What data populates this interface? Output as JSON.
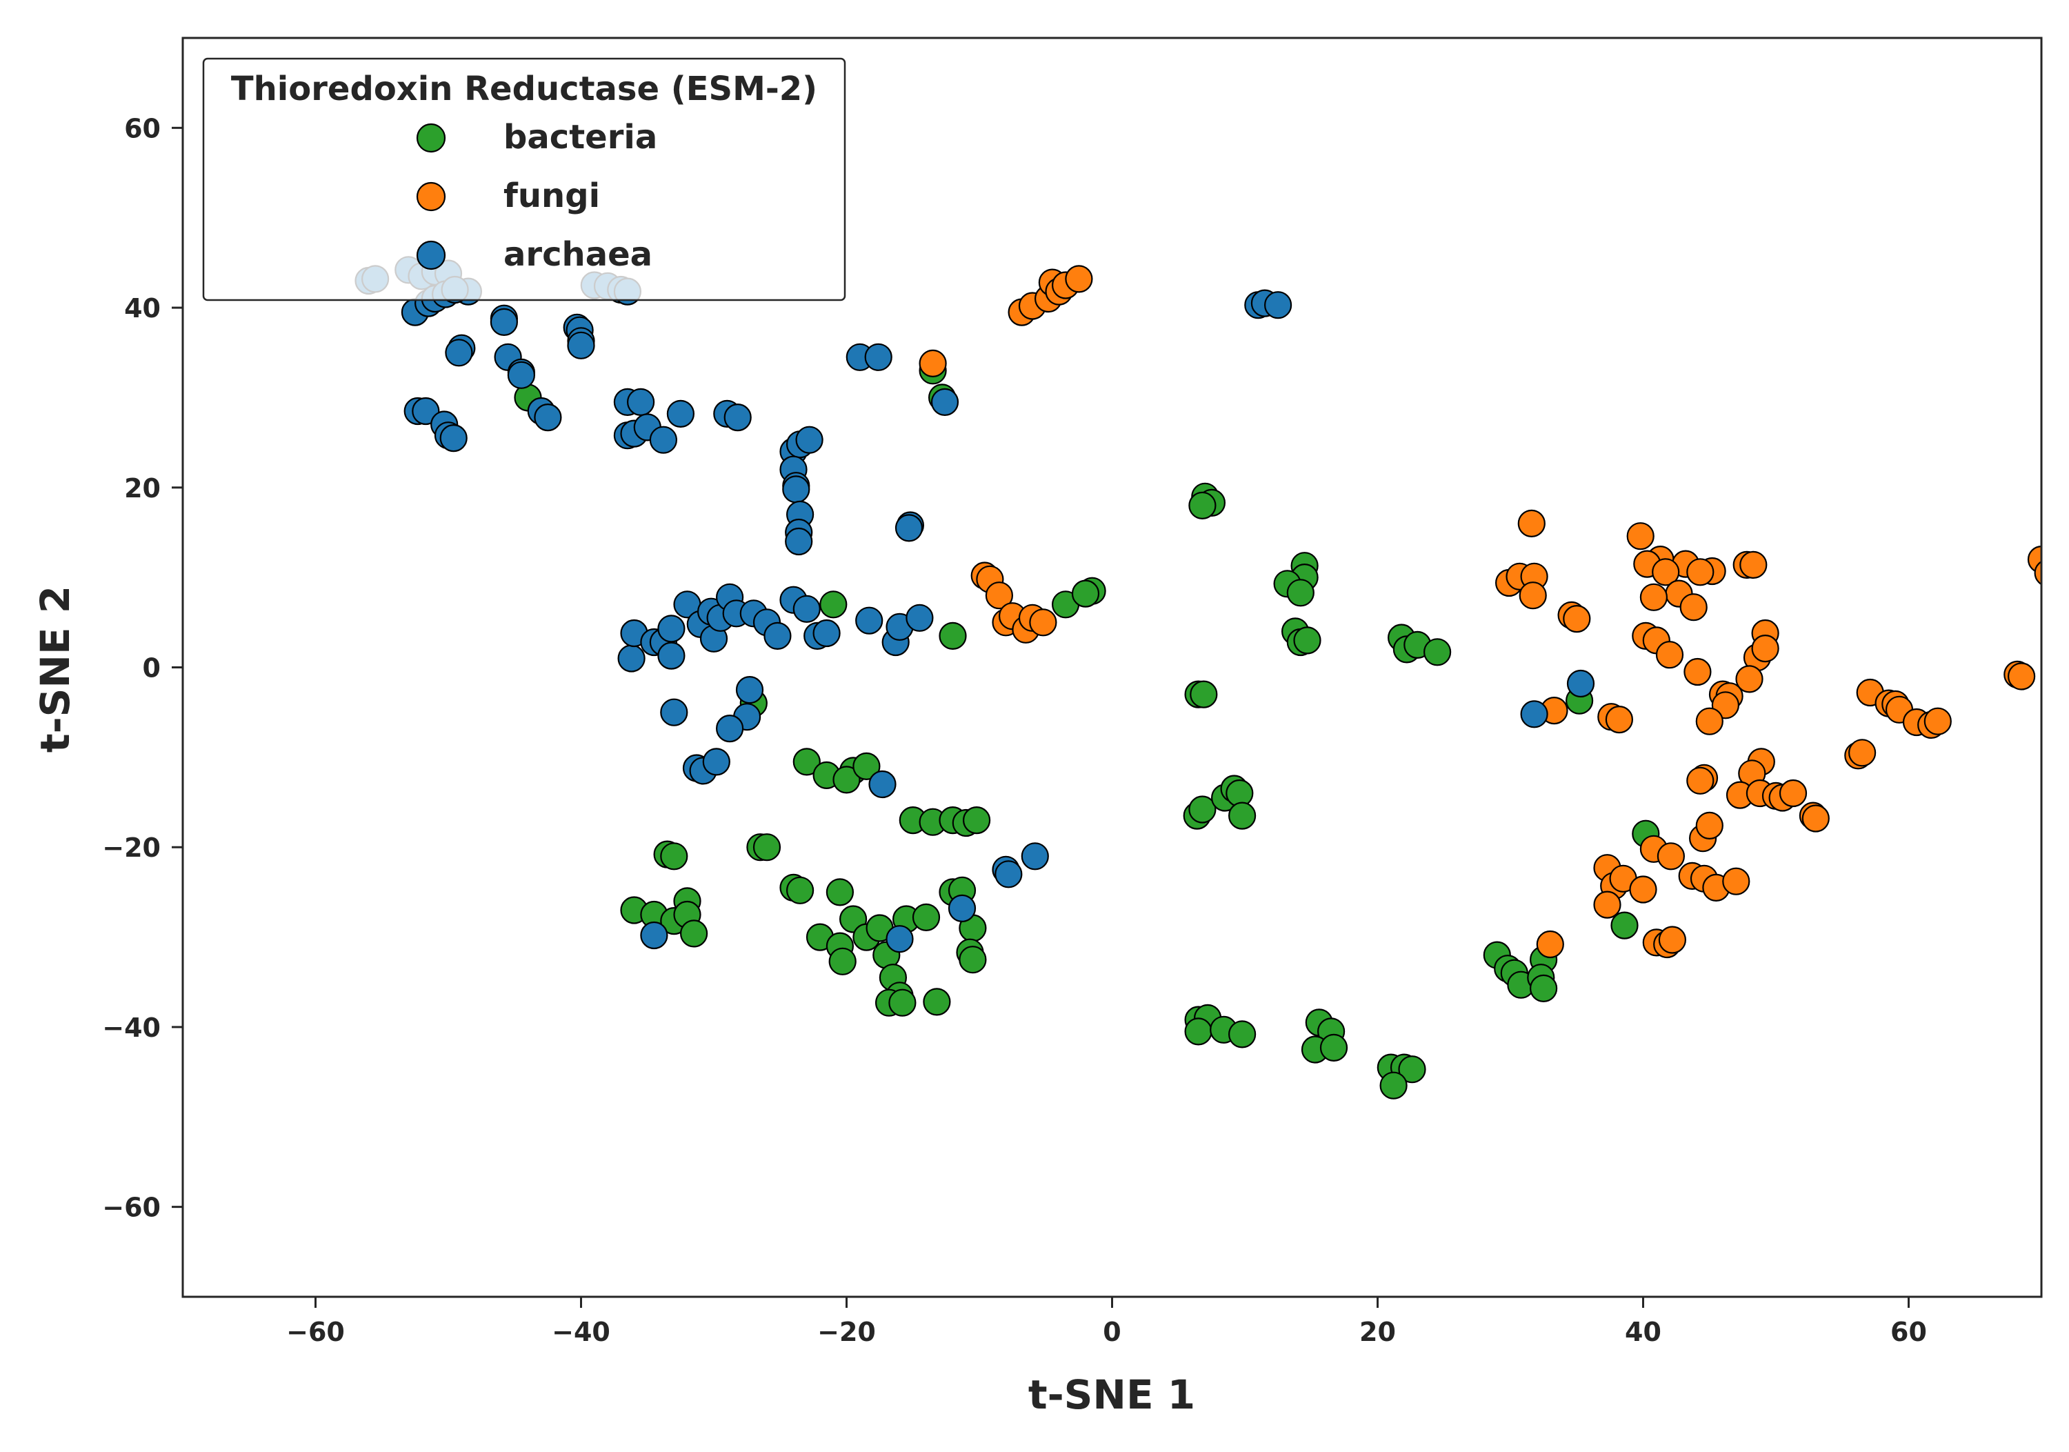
{
  "chart_data": {
    "type": "scatter",
    "xlabel": "t-SNE 1",
    "ylabel": "t-SNE 2",
    "xlim": [
      -70,
      70
    ],
    "ylim": [
      -70,
      70
    ],
    "xticks": [
      -60,
      -40,
      -20,
      0,
      20,
      40,
      60
    ],
    "yticks": [
      -60,
      -40,
      -20,
      0,
      20,
      40,
      60
    ],
    "xtick_labels": [
      "−60",
      "−40",
      "−20",
      "0",
      "20",
      "40",
      "60"
    ],
    "ytick_labels": [
      "−60",
      "−40",
      "−20",
      "0",
      "20",
      "40",
      "60"
    ],
    "grid": false,
    "legend": {
      "title": "Thioredoxin Reductase (ESM-2)",
      "location": "upper left"
    },
    "series": [
      {
        "name": "bacteria",
        "color": "#2ca02c",
        "points": [
          [
            -44,
            30
          ],
          [
            -13.5,
            33
          ],
          [
            -12.8,
            30
          ],
          [
            7,
            19
          ],
          [
            7.5,
            18.3
          ],
          [
            6.8,
            18
          ],
          [
            -21,
            7
          ],
          [
            -12,
            3.5
          ],
          [
            -3.5,
            7
          ],
          [
            -1.5,
            8.5
          ],
          [
            -2,
            8.2
          ],
          [
            14.5,
            11.3
          ],
          [
            14.5,
            10
          ],
          [
            13.2,
            9.3
          ],
          [
            14.2,
            8.3
          ],
          [
            13.8,
            4
          ],
          [
            14.2,
            2.8
          ],
          [
            14.7,
            3
          ],
          [
            21.8,
            3.3
          ],
          [
            22.2,
            2
          ],
          [
            23,
            2.5
          ],
          [
            24.5,
            1.7
          ],
          [
            6.5,
            -3
          ],
          [
            6.9,
            -3
          ],
          [
            35.2,
            -3.7
          ],
          [
            -27,
            -4
          ],
          [
            -23,
            -10.5
          ],
          [
            -21.5,
            -12
          ],
          [
            -19.5,
            -11.5
          ],
          [
            -20,
            -12.5
          ],
          [
            -18.5,
            -11
          ],
          [
            -15,
            -17
          ],
          [
            -13.5,
            -17.2
          ],
          [
            -12,
            -17
          ],
          [
            -11,
            -17.3
          ],
          [
            -10.2,
            -17
          ],
          [
            6.4,
            -16.5
          ],
          [
            6.8,
            -15.8
          ],
          [
            8.5,
            -14.5
          ],
          [
            9.2,
            -13.5
          ],
          [
            9.6,
            -14
          ],
          [
            9.8,
            -16.5
          ],
          [
            -26.5,
            -20
          ],
          [
            -26,
            -20
          ],
          [
            -33.5,
            -20.8
          ],
          [
            -33,
            -21
          ],
          [
            -24,
            -24.5
          ],
          [
            -23.5,
            -24.8
          ],
          [
            -20.5,
            -25
          ],
          [
            -12,
            -25
          ],
          [
            -11.3,
            -24.8
          ],
          [
            -36,
            -27
          ],
          [
            -34.5,
            -27.5
          ],
          [
            -32,
            -26
          ],
          [
            -33,
            -28.2
          ],
          [
            -32,
            -27.5
          ],
          [
            -31.5,
            -29.6
          ],
          [
            -22,
            -30
          ],
          [
            -20.5,
            -31
          ],
          [
            -19.5,
            -28
          ],
          [
            -18.5,
            -30
          ],
          [
            -17.5,
            -29
          ],
          [
            -17,
            -32
          ],
          [
            -15.5,
            -28
          ],
          [
            -14,
            -27.8
          ],
          [
            -10.5,
            -29
          ],
          [
            -10.7,
            -31.7
          ],
          [
            -10.5,
            -32.5
          ],
          [
            -20.3,
            -32.7
          ],
          [
            -16.5,
            -34.5
          ],
          [
            -16,
            -36.5
          ],
          [
            -16.8,
            -37.3
          ],
          [
            -15.8,
            -37.3
          ],
          [
            -13.2,
            -37.2
          ],
          [
            38.6,
            -28.7
          ],
          [
            40.2,
            -18.5
          ],
          [
            29,
            -32
          ],
          [
            29.8,
            -33.5
          ],
          [
            30.3,
            -34
          ],
          [
            30.8,
            -35.3
          ],
          [
            32.5,
            -32.5
          ],
          [
            32.3,
            -34.5
          ],
          [
            32.5,
            -35.7
          ],
          [
            6.5,
            -39.2
          ],
          [
            7.2,
            -39
          ],
          [
            6.5,
            -40.5
          ],
          [
            8.4,
            -40.3
          ],
          [
            9.8,
            -40.8
          ],
          [
            15.6,
            -39.5
          ],
          [
            16.5,
            -40.5
          ],
          [
            15.3,
            -42.5
          ],
          [
            16.7,
            -42.3
          ],
          [
            21,
            -44.5
          ],
          [
            22,
            -44.5
          ],
          [
            22.6,
            -44.7
          ],
          [
            21.2,
            -46.5
          ]
        ]
      },
      {
        "name": "fungi",
        "color": "#ff7f0e",
        "points": [
          [
            -6.8,
            39.5
          ],
          [
            -6,
            40.2
          ],
          [
            -4.8,
            41
          ],
          [
            -4.5,
            42.8
          ],
          [
            -4,
            41.8
          ],
          [
            -3.5,
            42.5
          ],
          [
            -2.5,
            43.2
          ],
          [
            -13.5,
            33.8
          ],
          [
            -9.6,
            10.2
          ],
          [
            -9.2,
            9.8
          ],
          [
            -8.5,
            8
          ],
          [
            -8,
            5
          ],
          [
            -7.5,
            5.7
          ],
          [
            -6.5,
            4.2
          ],
          [
            -6,
            5.5
          ],
          [
            -5.2,
            5
          ],
          [
            31.6,
            16
          ],
          [
            39.8,
            14.6
          ],
          [
            41.3,
            12
          ],
          [
            40.3,
            11.5
          ],
          [
            43.2,
            11.5
          ],
          [
            45.2,
            10.7
          ],
          [
            41.7,
            10.6
          ],
          [
            44.3,
            10.6
          ],
          [
            47.8,
            11.4
          ],
          [
            48.3,
            11.4
          ],
          [
            29.9,
            9.4
          ],
          [
            30.7,
            10.1
          ],
          [
            31.8,
            10.1
          ],
          [
            31.7,
            8
          ],
          [
            42.7,
            8.2
          ],
          [
            40.8,
            7.8
          ],
          [
            43.8,
            6.7
          ],
          [
            34.6,
            5.8
          ],
          [
            35,
            5.4
          ],
          [
            40.2,
            3.5
          ],
          [
            41,
            3
          ],
          [
            42,
            1.4
          ],
          [
            49.2,
            3.8
          ],
          [
            48.6,
            1.1
          ],
          [
            49.2,
            2.1
          ],
          [
            44.1,
            -0.5
          ],
          [
            48,
            -1.3
          ],
          [
            68.2,
            -0.8
          ],
          [
            68.5,
            -1
          ],
          [
            33.3,
            -4.8
          ],
          [
            37.6,
            -5.5
          ],
          [
            38.2,
            -5.8
          ],
          [
            46,
            -3
          ],
          [
            46.5,
            -3.2
          ],
          [
            46.2,
            -4.2
          ],
          [
            45,
            -6
          ],
          [
            57.1,
            -2.8
          ],
          [
            58.5,
            -4
          ],
          [
            59,
            -4.1
          ],
          [
            59.3,
            -4.7
          ],
          [
            60.6,
            -6.1
          ],
          [
            61.7,
            -6.4
          ],
          [
            62.2,
            -6
          ],
          [
            56.2,
            -9.8
          ],
          [
            56.5,
            -9.5
          ],
          [
            48.9,
            -10.5
          ],
          [
            44.6,
            -12.3
          ],
          [
            44.3,
            -12.6
          ],
          [
            48.2,
            -11.8
          ],
          [
            47.3,
            -14.2
          ],
          [
            48.8,
            -14
          ],
          [
            50,
            -14.3
          ],
          [
            50.5,
            -14.5
          ],
          [
            51.3,
            -14
          ],
          [
            52.8,
            -16.5
          ],
          [
            53,
            -16.8
          ],
          [
            44.5,
            -19
          ],
          [
            45,
            -17.6
          ],
          [
            40.8,
            -20.2
          ],
          [
            42.1,
            -21
          ],
          [
            37.3,
            -22.3
          ],
          [
            37.8,
            -24.3
          ],
          [
            38.5,
            -23.5
          ],
          [
            40,
            -24.7
          ],
          [
            43.7,
            -23.2
          ],
          [
            44.6,
            -23.5
          ],
          [
            45.5,
            -24.5
          ],
          [
            47,
            -23.8
          ],
          [
            37.3,
            -26.4
          ],
          [
            33,
            -30.8
          ],
          [
            41,
            -30.6
          ],
          [
            41.8,
            -30.8
          ],
          [
            42.2,
            -30.3
          ],
          [
            70,
            12
          ],
          [
            70.5,
            10.5
          ]
        ]
      },
      {
        "name": "archaea",
        "color": "#1f77b4",
        "points": [
          [
            -56,
            43
          ],
          [
            -55.5,
            43.2
          ],
          [
            -53,
            44.2
          ],
          [
            -52,
            43.5
          ],
          [
            -51,
            44
          ],
          [
            -50,
            43.8
          ],
          [
            -48.5,
            41.8
          ],
          [
            -39,
            42.5
          ],
          [
            -38,
            42.4
          ],
          [
            -37,
            42
          ],
          [
            -36.5,
            41.8
          ],
          [
            -52.5,
            39.5
          ],
          [
            -51.5,
            40.5
          ],
          [
            -51,
            41
          ],
          [
            -50.2,
            41.5
          ],
          [
            -49.5,
            42
          ],
          [
            -45.8,
            38.8
          ],
          [
            -45.8,
            38.4
          ],
          [
            -40.3,
            37.8
          ],
          [
            -40.1,
            37.5
          ],
          [
            -40,
            36.3
          ],
          [
            -40,
            35.8
          ],
          [
            -49,
            35.5
          ],
          [
            -49.2,
            35
          ],
          [
            -45.5,
            34.5
          ],
          [
            -44.5,
            32.8
          ],
          [
            -44.5,
            32.5
          ],
          [
            -43,
            28.5
          ],
          [
            -42.5,
            27.8
          ],
          [
            -52.3,
            28.5
          ],
          [
            -51.7,
            28.5
          ],
          [
            -50.3,
            27
          ],
          [
            -50,
            25.8
          ],
          [
            -49.6,
            25.5
          ],
          [
            -36.5,
            29.5
          ],
          [
            -35.5,
            29.5
          ],
          [
            -36.5,
            25.8
          ],
          [
            -36,
            26
          ],
          [
            -35,
            26.7
          ],
          [
            -33.8,
            25.3
          ],
          [
            -32.5,
            28.2
          ],
          [
            -29,
            28.2
          ],
          [
            -28.2,
            27.8
          ],
          [
            -12.6,
            29.5
          ],
          [
            -19,
            34.5
          ],
          [
            -17.6,
            34.5
          ],
          [
            -24,
            24
          ],
          [
            -23.5,
            24.8
          ],
          [
            -22.8,
            25.3
          ],
          [
            -24,
            22
          ],
          [
            -23.8,
            20.2
          ],
          [
            -23.8,
            19.8
          ],
          [
            -23.5,
            17
          ],
          [
            -23.6,
            15
          ],
          [
            -23.6,
            14
          ],
          [
            -15.2,
            15.8
          ],
          [
            -15.3,
            15.5
          ],
          [
            11,
            40.3
          ],
          [
            11.5,
            40.5
          ],
          [
            12.5,
            40.3
          ],
          [
            -36.2,
            1
          ],
          [
            -36,
            3.8
          ],
          [
            -34.5,
            2.8
          ],
          [
            -33.8,
            2.8
          ],
          [
            -33.2,
            1.3
          ],
          [
            -33.2,
            4.3
          ],
          [
            -32,
            7
          ],
          [
            -31,
            4.8
          ],
          [
            -30.2,
            6.2
          ],
          [
            -30,
            3.2
          ],
          [
            -29.5,
            5.5
          ],
          [
            -28.8,
            7.8
          ],
          [
            -28.3,
            6
          ],
          [
            -27,
            6
          ],
          [
            -26,
            5
          ],
          [
            -25.2,
            3.5
          ],
          [
            -24,
            7.5
          ],
          [
            -23,
            6.5
          ],
          [
            -22.2,
            3.5
          ],
          [
            -21.5,
            3.8
          ],
          [
            -18.3,
            5.2
          ],
          [
            -16.3,
            2.8
          ],
          [
            -16,
            4.5
          ],
          [
            -14.5,
            5.5
          ],
          [
            -33,
            -5
          ],
          [
            -27.3,
            -2.5
          ],
          [
            -27.5,
            -5.5
          ],
          [
            -28.8,
            -6.8
          ],
          [
            -31.3,
            -11.2
          ],
          [
            -30.8,
            -11.5
          ],
          [
            -29.8,
            -10.5
          ],
          [
            -17.3,
            -13
          ],
          [
            -8,
            -22.5
          ],
          [
            -7.8,
            -23
          ],
          [
            -5.8,
            -21
          ],
          [
            -11.3,
            -26.8
          ],
          [
            -16,
            -30.2
          ],
          [
            -34.5,
            -29.8
          ],
          [
            31.8,
            -5.2
          ],
          [
            35.3,
            -1.8
          ]
        ]
      }
    ]
  }
}
